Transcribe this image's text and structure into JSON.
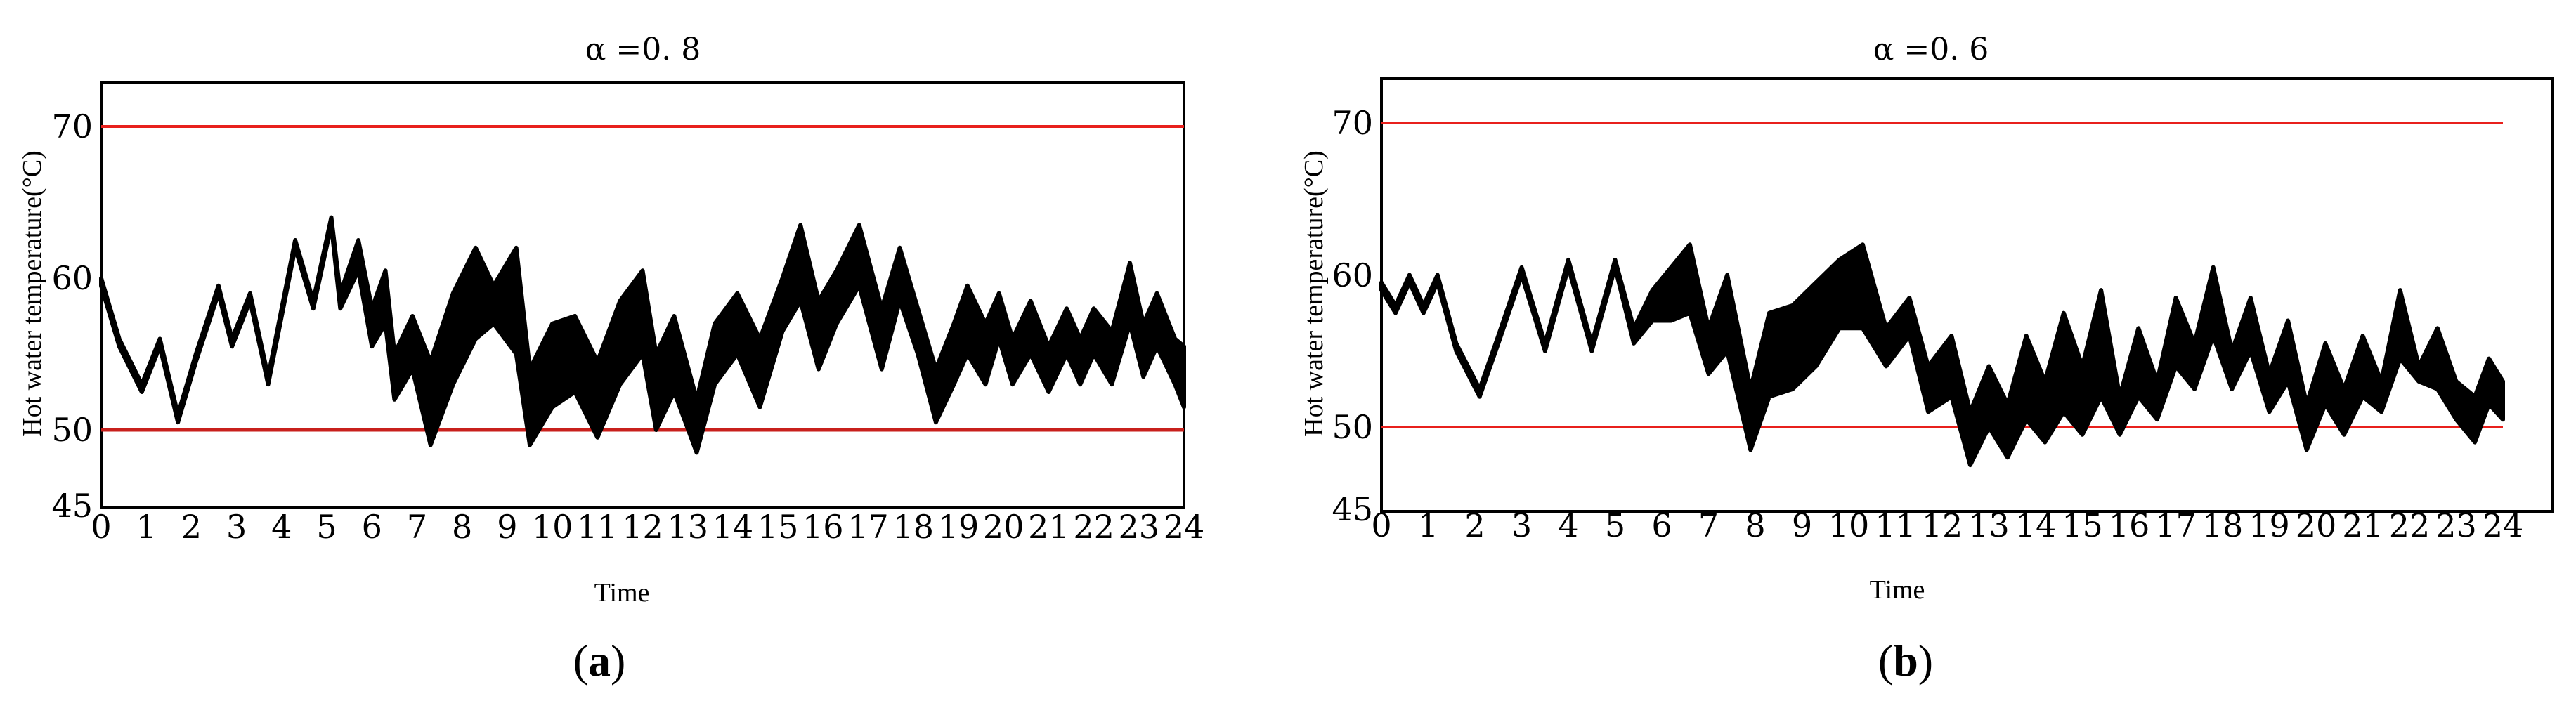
{
  "colors": {
    "threshold_line": "#e8201c",
    "lower_threshold_line": "#c8201c",
    "series": "#000000",
    "frame": "#000000"
  },
  "chart_data": [
    {
      "type": "line",
      "panel_label": "a",
      "title": "α =0. 8",
      "xlabel": "Time",
      "ylabel": "Hot water temperature(°C)",
      "xlim": [
        0,
        24
      ],
      "ylim": [
        45,
        73
      ],
      "x_ticks": [
        "0",
        "1",
        "2",
        "3",
        "4",
        "5",
        "6",
        "7",
        "8",
        "9",
        "10",
        "11",
        "12",
        "13",
        "14",
        "15",
        "16",
        "17",
        "18",
        "19",
        "20",
        "21",
        "22",
        "23",
        "24"
      ],
      "y_ticks": [
        "45",
        "50",
        "60",
        "70"
      ],
      "grid": false,
      "reference_lines": [
        70,
        50
      ],
      "band": {
        "x": [
          0,
          0.4,
          0.9,
          1.3,
          1.7,
          2.1,
          2.6,
          2.9,
          3.3,
          3.7,
          4.3,
          4.7,
          5.1,
          5.3,
          5.7,
          6.0,
          6.3,
          6.5,
          6.9,
          7.3,
          7.8,
          8.3,
          8.7,
          9.2,
          9.5,
          10.0,
          10.5,
          11.0,
          11.5,
          12.0,
          12.3,
          12.7,
          13.2,
          13.6,
          14.1,
          14.6,
          15.1,
          15.5,
          15.9,
          16.3,
          16.8,
          17.3,
          17.7,
          18.1,
          18.5,
          18.9,
          19.2,
          19.6,
          19.9,
          20.2,
          20.6,
          21.0,
          21.4,
          21.7,
          22.0,
          22.4,
          22.8,
          23.1,
          23.4,
          23.8,
          24.0
        ],
        "low": [
          59.5,
          55.5,
          52.5,
          55.5,
          50.5,
          54.5,
          59.0,
          55.5,
          58.5,
          53.0,
          62.0,
          58.0,
          63.5,
          58.0,
          60.5,
          55.5,
          57.0,
          52.0,
          54.0,
          49.0,
          53.0,
          56.0,
          57.0,
          55.0,
          49.0,
          51.5,
          52.5,
          49.5,
          53.0,
          55.0,
          50.0,
          52.5,
          48.5,
          53.0,
          55.0,
          51.5,
          56.5,
          58.5,
          54.0,
          57.0,
          59.5,
          54.0,
          58.5,
          55.0,
          50.5,
          53.0,
          55.0,
          53.0,
          56.0,
          53.0,
          55.0,
          52.5,
          55.0,
          53.0,
          55.0,
          53.0,
          57.0,
          53.5,
          55.5,
          53.0,
          51.5
        ],
        "high": [
          60.0,
          56.0,
          53.0,
          56.0,
          51.0,
          55.0,
          59.5,
          56.0,
          59.0,
          53.5,
          62.5,
          58.5,
          64.0,
          59.0,
          62.5,
          58.0,
          60.5,
          55.0,
          57.5,
          54.5,
          59.0,
          62.0,
          59.5,
          62.0,
          54.0,
          57.0,
          57.5,
          54.5,
          58.5,
          60.5,
          55.0,
          57.5,
          52.0,
          57.0,
          59.0,
          56.0,
          60.0,
          63.5,
          58.5,
          60.5,
          63.5,
          58.0,
          62.0,
          58.0,
          54.0,
          57.0,
          59.5,
          57.0,
          59.0,
          56.0,
          58.5,
          55.5,
          58.0,
          56.0,
          58.0,
          56.5,
          61.0,
          57.0,
          59.0,
          56.0,
          55.5
        ]
      }
    },
    {
      "type": "line",
      "panel_label": "b",
      "title": "α =0. 6",
      "xlabel": "Time",
      "ylabel": "Hot water temperature(°C)",
      "xlim": [
        0,
        24
      ],
      "ylim": [
        45,
        73
      ],
      "x_ticks": [
        "0",
        "1",
        "2",
        "3",
        "4",
        "5",
        "6",
        "7",
        "8",
        "9",
        "10",
        "11",
        "12",
        "13",
        "14",
        "15",
        "16",
        "17",
        "18",
        "19",
        "20",
        "21",
        "22",
        "23",
        "24"
      ],
      "y_ticks": [
        "45",
        "50",
        "60",
        "70"
      ],
      "grid": false,
      "reference_lines": [
        70,
        50
      ],
      "band": {
        "x": [
          0,
          0.3,
          0.6,
          0.9,
          1.2,
          1.6,
          2.1,
          2.5,
          3.0,
          3.5,
          4.0,
          4.5,
          5.0,
          5.4,
          5.8,
          6.2,
          6.6,
          7.0,
          7.4,
          7.9,
          8.3,
          8.8,
          9.3,
          9.8,
          10.3,
          10.8,
          11.3,
          11.7,
          12.2,
          12.6,
          13.0,
          13.4,
          13.8,
          14.2,
          14.6,
          15.0,
          15.4,
          15.8,
          16.2,
          16.6,
          17.0,
          17.4,
          17.8,
          18.2,
          18.6,
          19.0,
          19.4,
          19.8,
          20.2,
          20.6,
          21.0,
          21.4,
          21.8,
          22.2,
          22.6,
          23.0,
          23.4,
          23.7,
          24.0
        ],
        "low": [
          59.0,
          57.5,
          59.5,
          57.5,
          59.5,
          55.0,
          52.0,
          55.5,
          60.0,
          55.0,
          60.5,
          55.0,
          60.5,
          55.5,
          57.0,
          57.0,
          57.5,
          53.5,
          55.0,
          48.5,
          52.0,
          52.5,
          54.0,
          56.5,
          56.5,
          54.0,
          56.0,
          51.0,
          52.0,
          47.5,
          50.0,
          48.0,
          50.5,
          49.0,
          51.0,
          49.5,
          52.0,
          49.5,
          52.0,
          50.5,
          54.0,
          52.5,
          56.0,
          52.5,
          55.0,
          51.0,
          53.0,
          48.5,
          51.5,
          49.5,
          52.0,
          51.0,
          54.5,
          53.0,
          52.5,
          50.5,
          49.0,
          51.5,
          50.5
        ],
        "high": [
          59.5,
          58.0,
          60.0,
          58.0,
          60.0,
          55.5,
          52.5,
          56.0,
          60.5,
          55.5,
          61.0,
          55.5,
          61.0,
          56.5,
          59.0,
          60.5,
          62.0,
          56.5,
          60.0,
          52.5,
          57.5,
          58.0,
          59.5,
          61.0,
          62.0,
          56.5,
          58.5,
          54.0,
          56.0,
          51.0,
          54.0,
          51.5,
          56.0,
          53.0,
          57.5,
          54.0,
          59.0,
          52.0,
          56.5,
          53.0,
          58.5,
          55.5,
          60.5,
          55.0,
          58.5,
          53.5,
          57.0,
          51.5,
          55.5,
          52.5,
          56.0,
          53.0,
          59.0,
          54.0,
          56.5,
          53.0,
          52.0,
          54.5,
          53.0
        ]
      }
    }
  ]
}
